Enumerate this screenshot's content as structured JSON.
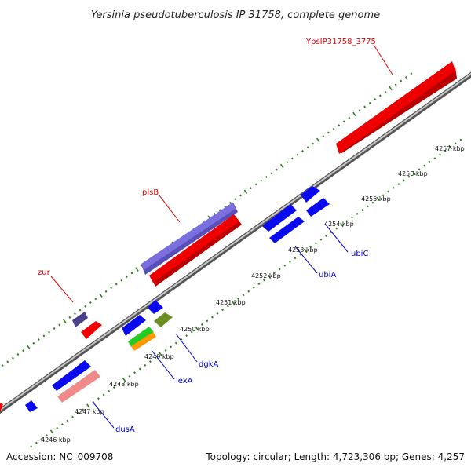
{
  "title": "Yersinia pseudotuberculosis IP 31758, complete genome",
  "footer": {
    "accession": "Accession: NC_009708",
    "summary": "Topology: circular; Length: 4,723,306 bp; Genes: 4,257"
  },
  "colors": {
    "backbone": "#7a7a7a",
    "tick": "#2e7d1e",
    "forward_label": "#dd0000",
    "reverse_label": "#0000cc",
    "gene_blue": "#0a0aee",
    "gene_red": "#ee0000",
    "gene_purple": "#7b6fe0",
    "gene_dark_purple": "#4a3f8a",
    "gene_pink": "#f08a8a",
    "gene_olive": "#6b8e23",
    "gene_green": "#22cc22",
    "gene_orange": "#ff9900"
  },
  "ticks": [
    {
      "label": "4246 kbp"
    },
    {
      "label": "4247 kbp"
    },
    {
      "label": "4248 kbp"
    },
    {
      "label": "4249 kbp"
    },
    {
      "label": "4250 kbp"
    },
    {
      "label": "4251 kbp"
    },
    {
      "label": "4252 kbp"
    },
    {
      "label": "4253 kbp"
    },
    {
      "label": "4254 kbp"
    },
    {
      "label": "4255 kbp"
    },
    {
      "label": "4256 kbp"
    },
    {
      "label": "4257 kbp"
    }
  ],
  "gene_labels": {
    "ypsip": "YpsIP31758_3775",
    "plsb": "plsB",
    "zur": "zur",
    "ubic": "ubiC",
    "ubia": "ubiA",
    "dgka": "dgkA",
    "lexa": "lexA",
    "dusa": "dusA"
  }
}
